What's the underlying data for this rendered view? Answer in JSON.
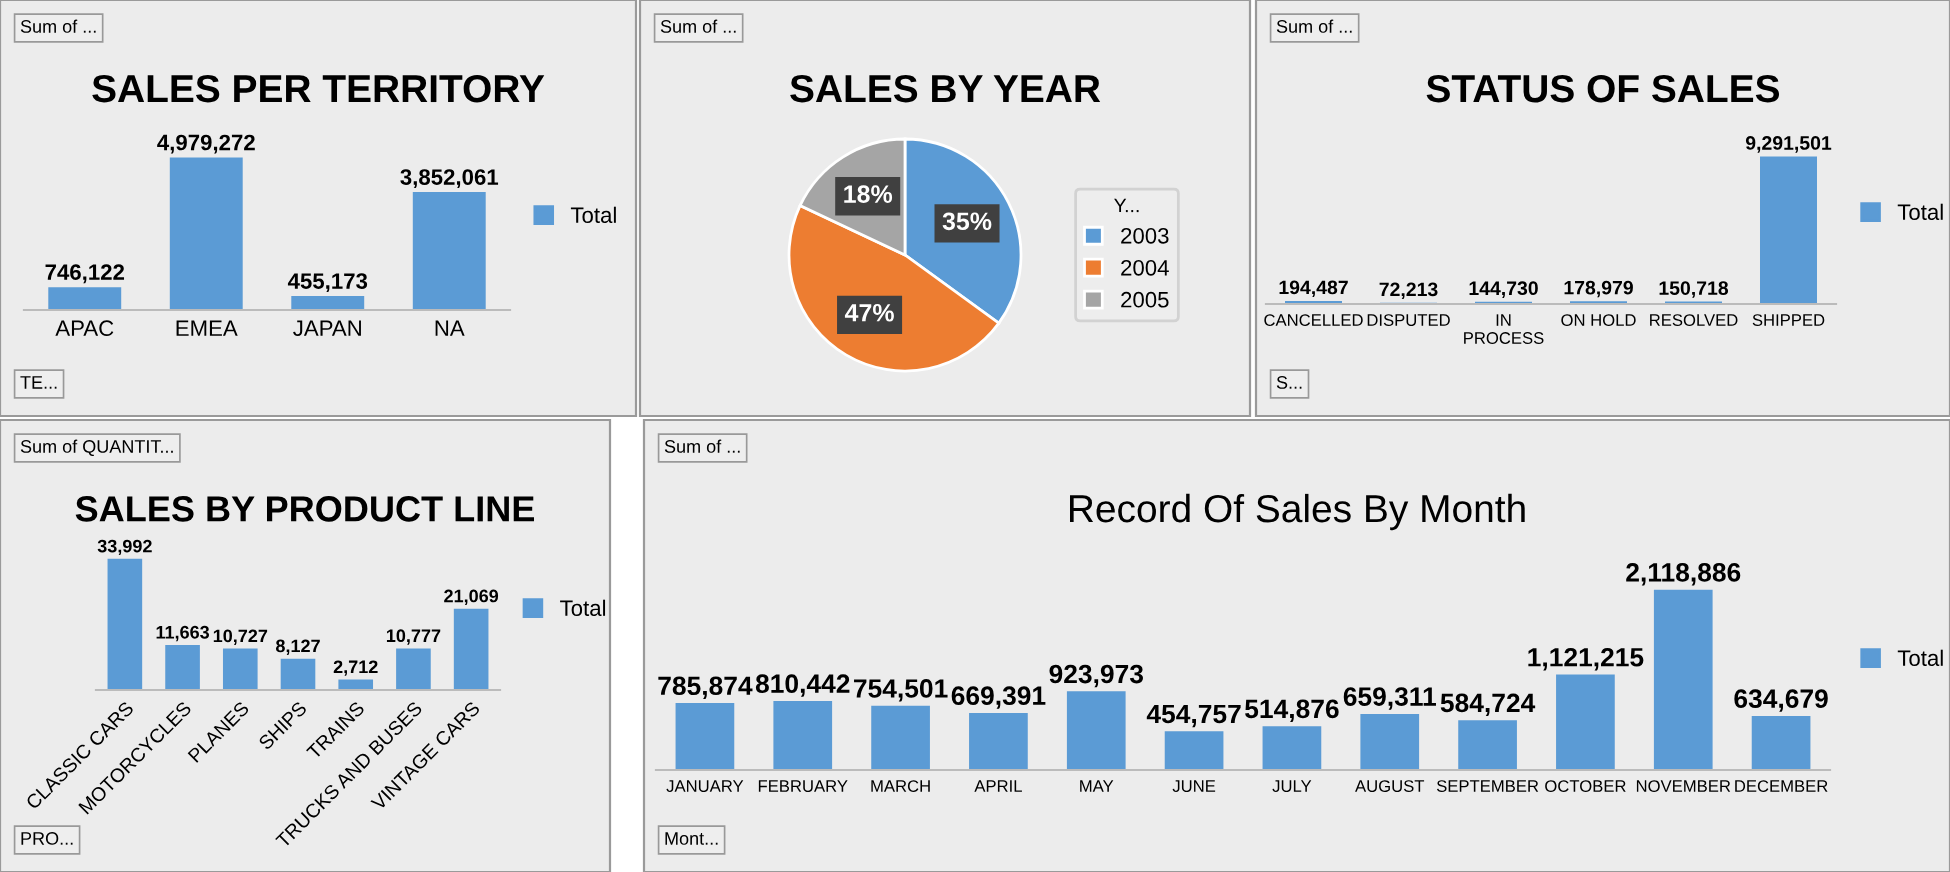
{
  "chart_data": [
    {
      "type": "bar",
      "title": "SALES PER TERRITORY",
      "categories": [
        "APAC",
        "EMEA",
        "JAPAN",
        "NA"
      ],
      "legend": "right",
      "annotations": [
        "Sum of ...",
        "TE..."
      ],
      "series": [
        {
          "name": "Total",
          "color": "#5b9bd5",
          "values": [
            746122,
            4979272,
            455173,
            3852061
          ],
          "value_labels": [
            "746,122",
            "4,979,272",
            "455,173",
            "3,852,061"
          ]
        }
      ]
    },
    {
      "type": "pie",
      "title": "SALES BY YEAR",
      "categories": [
        "2003",
        "2004",
        "2005"
      ],
      "values": [
        35,
        47,
        18
      ],
      "colors": [
        "#5b9bd5",
        "#ed7d31",
        "#a5a5a5"
      ],
      "value_labels": [
        "35%",
        "47%",
        "18%"
      ],
      "legend": "right",
      "legend_title": "Y...",
      "annotations": [
        "Sum of ..."
      ]
    },
    {
      "type": "bar",
      "title": "STATUS OF SALES",
      "categories": [
        "CANCELLED",
        "DISPUTED",
        "IN\nPROCESS",
        "ON HOLD",
        "RESOLVED",
        "SHIPPED"
      ],
      "legend": "right",
      "annotations": [
        "Sum of ...",
        "S..."
      ],
      "series": [
        {
          "name": "Total",
          "color": "#5b9bd5",
          "values": [
            194487,
            72213,
            144730,
            178979,
            150718,
            9291501
          ],
          "value_labels": [
            "194,487",
            "72,213",
            "144,730",
            "178,979",
            "150,718",
            "9,291,501"
          ]
        }
      ]
    },
    {
      "type": "bar",
      "title": "SALES BY PRODUCT LINE",
      "categories": [
        "CLASSIC CARS",
        "MOTORCYCLES",
        "PLANES",
        "SHIPS",
        "TRAINS",
        "TRUCKS AND BUSES",
        "VINTAGE CARS"
      ],
      "legend": "right",
      "annotations": [
        "Sum of QUANTIT...",
        "PRO..."
      ],
      "series": [
        {
          "name": "Total",
          "color": "#5b9bd5",
          "values": [
            33992,
            11663,
            10727,
            8127,
            2712,
            10777,
            21069
          ],
          "value_labels": [
            "33,992",
            "11,663",
            "10,727",
            "8,127",
            "2,712",
            "10,777",
            "21,069"
          ]
        }
      ]
    },
    {
      "type": "bar",
      "title": "Record Of Sales By Month",
      "categories": [
        "JANUARY",
        "FEBRUARY",
        "MARCH",
        "APRIL",
        "MAY",
        "JUNE",
        "JULY",
        "AUGUST",
        "SEPTEMBER",
        "OCTOBER",
        "NOVEMBER",
        "DECEMBER"
      ],
      "legend": "right",
      "annotations": [
        "Sum of ...",
        "Mont..."
      ],
      "series": [
        {
          "name": "Total",
          "color": "#5b9bd5",
          "values": [
            785874,
            810442,
            754501,
            669391,
            923973,
            454757,
            514876,
            659311,
            584724,
            1121215,
            2118886,
            634679
          ],
          "value_labels": [
            "785,874",
            "810,442",
            "754,501",
            "669,391",
            "923,973",
            "454,757",
            "514,876",
            "659,311",
            "584,724",
            "1,121,215",
            "2,118,886",
            "634,679"
          ]
        }
      ]
    }
  ]
}
